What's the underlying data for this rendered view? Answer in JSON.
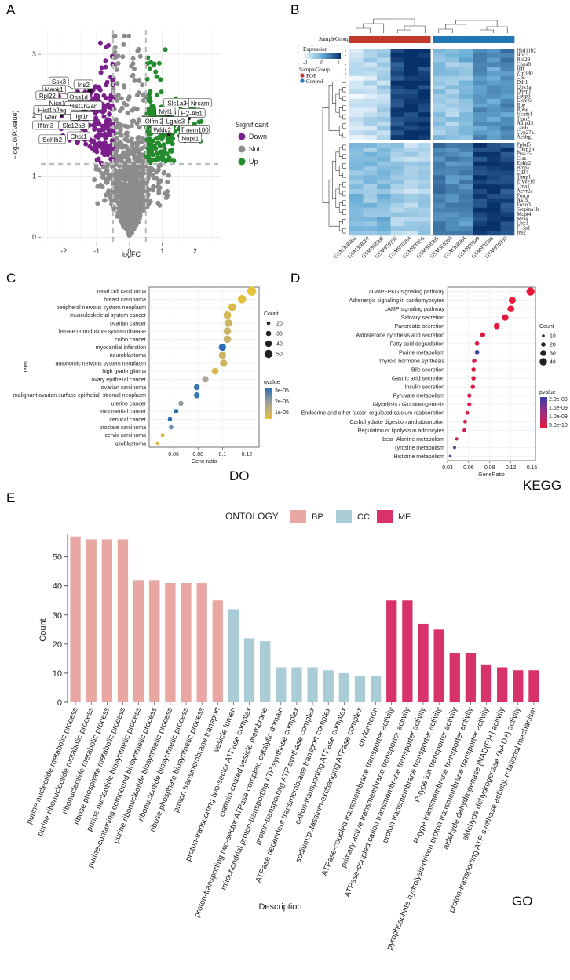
{
  "panel_letters": [
    "A",
    "B",
    "C",
    "D",
    "E"
  ],
  "chart_data": [
    {
      "id": "A",
      "type": "scatter",
      "title": "",
      "xlabel": "logFC",
      "ylabel": "−log10(P.Value)",
      "xlim": [
        -2.7,
        2.8
      ],
      "ylim": [
        -0.1,
        3.4
      ],
      "xticks": [
        -2,
        -1,
        0,
        1,
        2
      ],
      "yticks": [
        0,
        1,
        2,
        3
      ],
      "thresholds": {
        "logfc": [
          -0.5,
          0.5
        ],
        "p": 1.2
      },
      "legend_title": "Significant",
      "legend": [
        {
          "name": "Down",
          "color": "#7B1F8C"
        },
        {
          "name": "Not",
          "color": "#8C8C8C"
        },
        {
          "name": "Up",
          "color": "#238B2B"
        }
      ],
      "labels": [
        {
          "gene": "Sox3",
          "x": -1.4,
          "y": 2.35,
          "lx": -2.15,
          "ly": 2.55
        },
        {
          "gene": "Ins2",
          "x": -1.2,
          "y": 2.4,
          "lx": -1.4,
          "ly": 2.5
        },
        {
          "gene": "Mapk1",
          "x": -1.7,
          "y": 2.3,
          "lx": -2.3,
          "ly": 2.42
        },
        {
          "gene": "Oas1d",
          "x": -1.5,
          "y": 2.2,
          "lx": -1.55,
          "ly": 2.3
        },
        {
          "gene": "Rpl22",
          "x": -2.2,
          "y": 2.2,
          "lx": -2.5,
          "ly": 2.32
        },
        {
          "gene": "Nicn1",
          "x": -1.9,
          "y": 2.15,
          "lx": -2.2,
          "ly": 2.2
        },
        {
          "gene": "Hist1h2an",
          "x": -1.4,
          "y": 2.1,
          "lx": -1.4,
          "ly": 2.15
        },
        {
          "gene": "Hist1h2ag",
          "x": -2.1,
          "y": 2.0,
          "lx": -2.35,
          "ly": 2.08
        },
        {
          "gene": "Gfer",
          "x": -2.3,
          "y": 1.95,
          "lx": -2.4,
          "ly": 1.97
        },
        {
          "gene": "Igf1r",
          "x": -1.3,
          "y": 1.95,
          "lx": -1.45,
          "ly": 1.98
        },
        {
          "gene": "Ifitm3",
          "x": -2.3,
          "y": 1.8,
          "lx": -2.55,
          "ly": 1.83
        },
        {
          "gene": "Slc12a8",
          "x": -1.6,
          "y": 1.8,
          "lx": -1.7,
          "ly": 1.83
        },
        {
          "gene": "Chst1",
          "x": -1.5,
          "y": 1.7,
          "lx": -1.55,
          "ly": 1.65
        },
        {
          "gene": "Sohlh2",
          "x": -2.1,
          "y": 1.65,
          "lx": -2.35,
          "ly": 1.6
        },
        {
          "gene": "Slc1a3",
          "x": 1.2,
          "y": 2.0,
          "lx": 1.45,
          "ly": 2.2
        },
        {
          "gene": "Nrcam",
          "x": 1.7,
          "y": 2.2,
          "lx": 2.15,
          "ly": 2.2
        },
        {
          "gene": "Myl1",
          "x": 1.0,
          "y": 1.9,
          "lx": 1.1,
          "ly": 2.06
        },
        {
          "gene": "H2-Ab1",
          "x": 1.8,
          "y": 1.95,
          "lx": 1.9,
          "ly": 2.03
        },
        {
          "gene": "Olfml2b",
          "x": 0.7,
          "y": 1.8,
          "lx": 0.8,
          "ly": 1.9
        },
        {
          "gene": "Lgals3",
          "x": 1.4,
          "y": 1.85,
          "lx": 1.4,
          "ly": 1.9
        },
        {
          "gene": "Wfdc2",
          "x": 1.2,
          "y": 1.7,
          "lx": 1.0,
          "ly": 1.76
        },
        {
          "gene": "Tmem100",
          "x": 1.7,
          "y": 1.72,
          "lx": 1.98,
          "ly": 1.76
        },
        {
          "gene": "Nupr1",
          "x": 1.9,
          "y": 1.6,
          "lx": 1.85,
          "ly": 1.62
        }
      ]
    },
    {
      "id": "B",
      "type": "heatmap",
      "title": "",
      "annotation_label": "SampleGroup",
      "legend_title": "Expression",
      "legend_ticks": [
        "-1",
        "0",
        "1"
      ],
      "group_legend_title": "SampleGroup",
      "groups": [
        {
          "name": "POF",
          "color": "#C0392B"
        },
        {
          "name": "Control",
          "color": "#1F78B4"
        }
      ],
      "samples": [
        "GSM368266",
        "GSM368267",
        "GSM368268",
        "GSM970256",
        "GSM970254",
        "GSM970255",
        "GSM368265",
        "GSM368263",
        "GSM368264",
        "GSM970249",
        "GSM970248",
        "GSM970250"
      ],
      "sample_groups": [
        "POF",
        "POF",
        "POF",
        "POF",
        "POF",
        "POF",
        "Control",
        "Control",
        "Control",
        "Control",
        "Control",
        "Control"
      ],
      "genes_top": [
        "Hsd11b2",
        "Aoc3",
        "Rpl29",
        "Cops8",
        "Ihh",
        "Zfp330",
        "Cbs",
        "Ddr1",
        "Upk1a",
        "Dpep1",
        "Fabp3",
        "Elovl6",
        "Rpe",
        "Rhbg",
        "Vcam1",
        "Tgm2",
        "Ampd3",
        "Gas6",
        "Cyp27a1",
        "Acsbg1"
      ],
      "genes_bottom": [
        "Ppbd5",
        "Cdkn1b",
        "Prss35",
        "Ctsz",
        "Ephb2",
        "Bmp7",
        "Cd34",
        "Timp1",
        "Zfyve16",
        "Cma1",
        "Acvr2a",
        "Porcn",
        "Akt3",
        "Foxo3",
        "Serpina1b",
        "Mcpt4",
        "Mras",
        "Lbx3",
        "F13a1",
        "Ins2"
      ],
      "z_top": [
        -1.2,
        -1.0,
        -0.8,
        1.3,
        1.5,
        1.4,
        -0.5,
        -0.6,
        -0.4,
        0.3,
        0.2,
        0.4
      ],
      "z_bottom": [
        -0.3,
        -0.4,
        -0.2,
        -0.6,
        -0.8,
        -0.7,
        0.6,
        0.5,
        0.4,
        1.4,
        1.5,
        1.3
      ]
    },
    {
      "id": "C",
      "type": "scatter",
      "subtype": "dotplot",
      "xlabel": "Gene ratio",
      "ylabel": "Term",
      "xlim": [
        0.04,
        0.13
      ],
      "xticks": [
        0.06,
        0.08,
        0.1,
        0.12
      ],
      "tag": "DO",
      "size_title": "Count",
      "size_values": [
        20,
        30,
        40,
        50
      ],
      "color_title": "qvalue",
      "color_ticks": [
        "3e-05",
        "2e-05",
        "1e-05"
      ],
      "terms": [
        "renal cell carcinoma",
        "breast carcinoma",
        "peripheral nervous system neoplasm",
        "musculoskeletal system cancer",
        "ovarian cancer",
        "female reproductive system disease",
        "colon cancer",
        "myocardial infarction",
        "neuroblastoma",
        "autonomic nervous system neoplasm",
        "high grade glioma",
        "ovary epithelial cancer",
        "ovarian carcinoma",
        "malignant ovarian surface epithelial−stromal neoplasm",
        "uterine cancer",
        "endometrial cancer",
        "cervical cancer",
        "prostate carcinoma",
        "cervix carcinoma",
        "glioblastoma"
      ],
      "x": [
        0.124,
        0.116,
        0.108,
        0.104,
        0.105,
        0.104,
        0.104,
        0.1,
        0.1,
        0.101,
        0.094,
        0.086,
        0.079,
        0.079,
        0.066,
        0.062,
        0.057,
        0.058,
        0.051,
        0.047
      ],
      "count": [
        55,
        51,
        47,
        46,
        46,
        46,
        46,
        44,
        44,
        44,
        41,
        38,
        35,
        35,
        29,
        27,
        25,
        25,
        22,
        21
      ],
      "q": [
        1e-06,
        2e-06,
        4e-06,
        6e-06,
        8e-06,
        9e-06,
        9e-06,
        3.6e-05,
        8e-06,
        8e-06,
        6e-06,
        1.8e-05,
        3.4e-05,
        3.4e-05,
        2.2e-05,
        3.6e-05,
        3.6e-05,
        2.6e-05,
        6e-06,
        5e-06
      ]
    },
    {
      "id": "D",
      "type": "scatter",
      "subtype": "dotplot",
      "xlabel": "GeneRatio",
      "ylabel": "",
      "xlim": [
        0.03,
        0.155
      ],
      "xticks": [
        0.03,
        0.06,
        0.09,
        0.12,
        0.15
      ],
      "tag": "KEGG",
      "size_title": "Count",
      "size_values": [
        10,
        20,
        30,
        40
      ],
      "color_title": "pvalue",
      "color_ticks": [
        "2.0e-09",
        "1.5e-09",
        "1.0e-09",
        "5.0e-10"
      ],
      "terms": [
        "cGMP−PKG signaling pathway",
        "Adrenergic signaling in cardiomyocytes",
        "cAMP signaling pathway",
        "Salivary secretion",
        "Pancreatic secretion",
        "Aldosterone synthesis and secretion",
        "Fatty acid degradation",
        "Purine metabolism",
        "Thyroid hormone synthesis",
        "Bile secretion",
        "Gastric acid secretion",
        "Insulin secretion",
        "Pyruvate metabolism",
        "Glycolysis / Gluconeogenesis",
        "Endocrine and other factor−regulated calcium reabsorption",
        "Carbohydrate digestion and absorption",
        "Regulation of lipolysis in adipocytes",
        "beta−Alanine metabolism",
        "Tyrosine metabolism",
        "Histidine metabolism"
      ],
      "x": [
        0.148,
        0.122,
        0.12,
        0.112,
        0.1,
        0.08,
        0.072,
        0.072,
        0.068,
        0.067,
        0.067,
        0.066,
        0.061,
        0.061,
        0.058,
        0.055,
        0.054,
        0.043,
        0.04,
        0.034
      ],
      "count": [
        44,
        36,
        35,
        33,
        30,
        24,
        21,
        21,
        20,
        20,
        20,
        19,
        18,
        18,
        17,
        16,
        16,
        13,
        12,
        10
      ],
      "p": [
        2e-11,
        5e-11,
        5e-11,
        1e-10,
        1e-10,
        2e-10,
        2e-10,
        2.2e-09,
        2e-10,
        2e-10,
        2e-10,
        2e-10,
        2e-10,
        2e-10,
        3e-10,
        3e-10,
        3e-10,
        4e-10,
        1.8e-09,
        1.8e-09
      ]
    },
    {
      "id": "E",
      "type": "bar",
      "xlabel": "Description",
      "ylabel": "Count",
      "ylim": [
        0,
        58
      ],
      "yticks": [
        0,
        10,
        20,
        30,
        40,
        50
      ],
      "tag": "GO",
      "legend_title": "ONTOLOGY",
      "legend": [
        {
          "name": "BP",
          "color": "#E8A7A3"
        },
        {
          "name": "CC",
          "color": "#A9CCD6"
        },
        {
          "name": "MF",
          "color": "#D7336A"
        }
      ],
      "categories": [
        "purine nucleotide metabolic process",
        "purine ribonucleotide metabolic process",
        "ribonucleotide metabolic process",
        "ribose phosphate metabolic process",
        "purine nucleotide biosynthetic process",
        "purine-containing compound biosynthetic process",
        "purine ribonucleotide biosynthetic process",
        "ribonucleotide biosynthetic process",
        "ribose phosphate biosynthetic process",
        "proton transmembrane transport",
        "vesicle lumen",
        "proton-transporting two-sector ATPase complex",
        "clathrin-coated vesicle membrane",
        "proton-transporting two-sector ATPase complex, catalytic domain",
        "mitochondrial proton-transporting ATP synthase complex",
        "proton-transporting ATP synthase complex",
        "ATPase dependent transmembrane transport complex",
        "cation-transporting ATPase complex",
        "sodium:potassium-exchanging ATPase complex",
        "chylomicron",
        "ATPase-coupled transmembrane transporter activity",
        "primary active transmembrane transporter activity",
        "ATPase-coupled cation transmembrane transporter activity",
        "proton transmembrane transporter activity",
        "P-type ion transporter activity",
        "P-type transmembrane transporter activity",
        "pyrophosphate hydrolysis-driven proton transmembrane transporter activity",
        "aldehyde dehydrogenase [NAD(P)+] activity",
        "aldehyde dehydrogenase (NAD+) activity",
        "proton-transporting ATP synthase activity, rotational mechanism"
      ],
      "values": [
        57,
        56,
        56,
        56,
        42,
        42,
        41,
        41,
        41,
        35,
        32,
        22,
        21,
        12,
        12,
        12,
        11,
        10,
        9,
        9,
        35,
        35,
        27,
        25,
        17,
        17,
        13,
        12,
        11,
        11
      ],
      "groups": [
        "BP",
        "BP",
        "BP",
        "BP",
        "BP",
        "BP",
        "BP",
        "BP",
        "BP",
        "BP",
        "CC",
        "CC",
        "CC",
        "CC",
        "CC",
        "CC",
        "CC",
        "CC",
        "CC",
        "CC",
        "MF",
        "MF",
        "MF",
        "MF",
        "MF",
        "MF",
        "MF",
        "MF",
        "MF",
        "MF"
      ]
    }
  ]
}
